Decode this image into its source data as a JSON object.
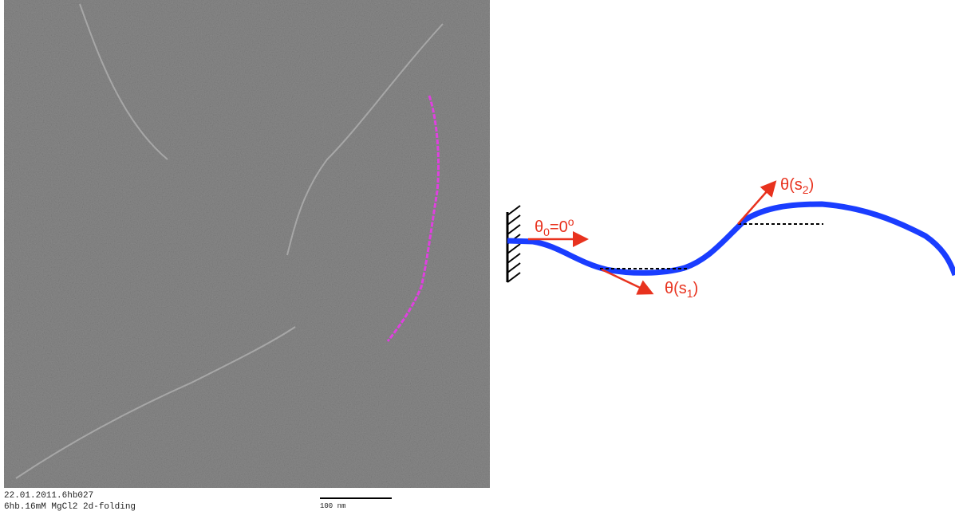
{
  "micrograph": {
    "caption_line1": "22.01.2011.6hb027",
    "caption_line2": "6hb.16mM MgCl2 2d-folding",
    "scale_bar": "100 nm"
  },
  "diagram": {
    "labels": [
      {
        "main": "θ",
        "sub": "0",
        "rest": "=0",
        "sup": "o"
      },
      {
        "main": "θ(s",
        "sub": "1",
        "rest": ")"
      },
      {
        "main": "θ(s",
        "sub": "2",
        "rest": ")"
      }
    ]
  }
}
